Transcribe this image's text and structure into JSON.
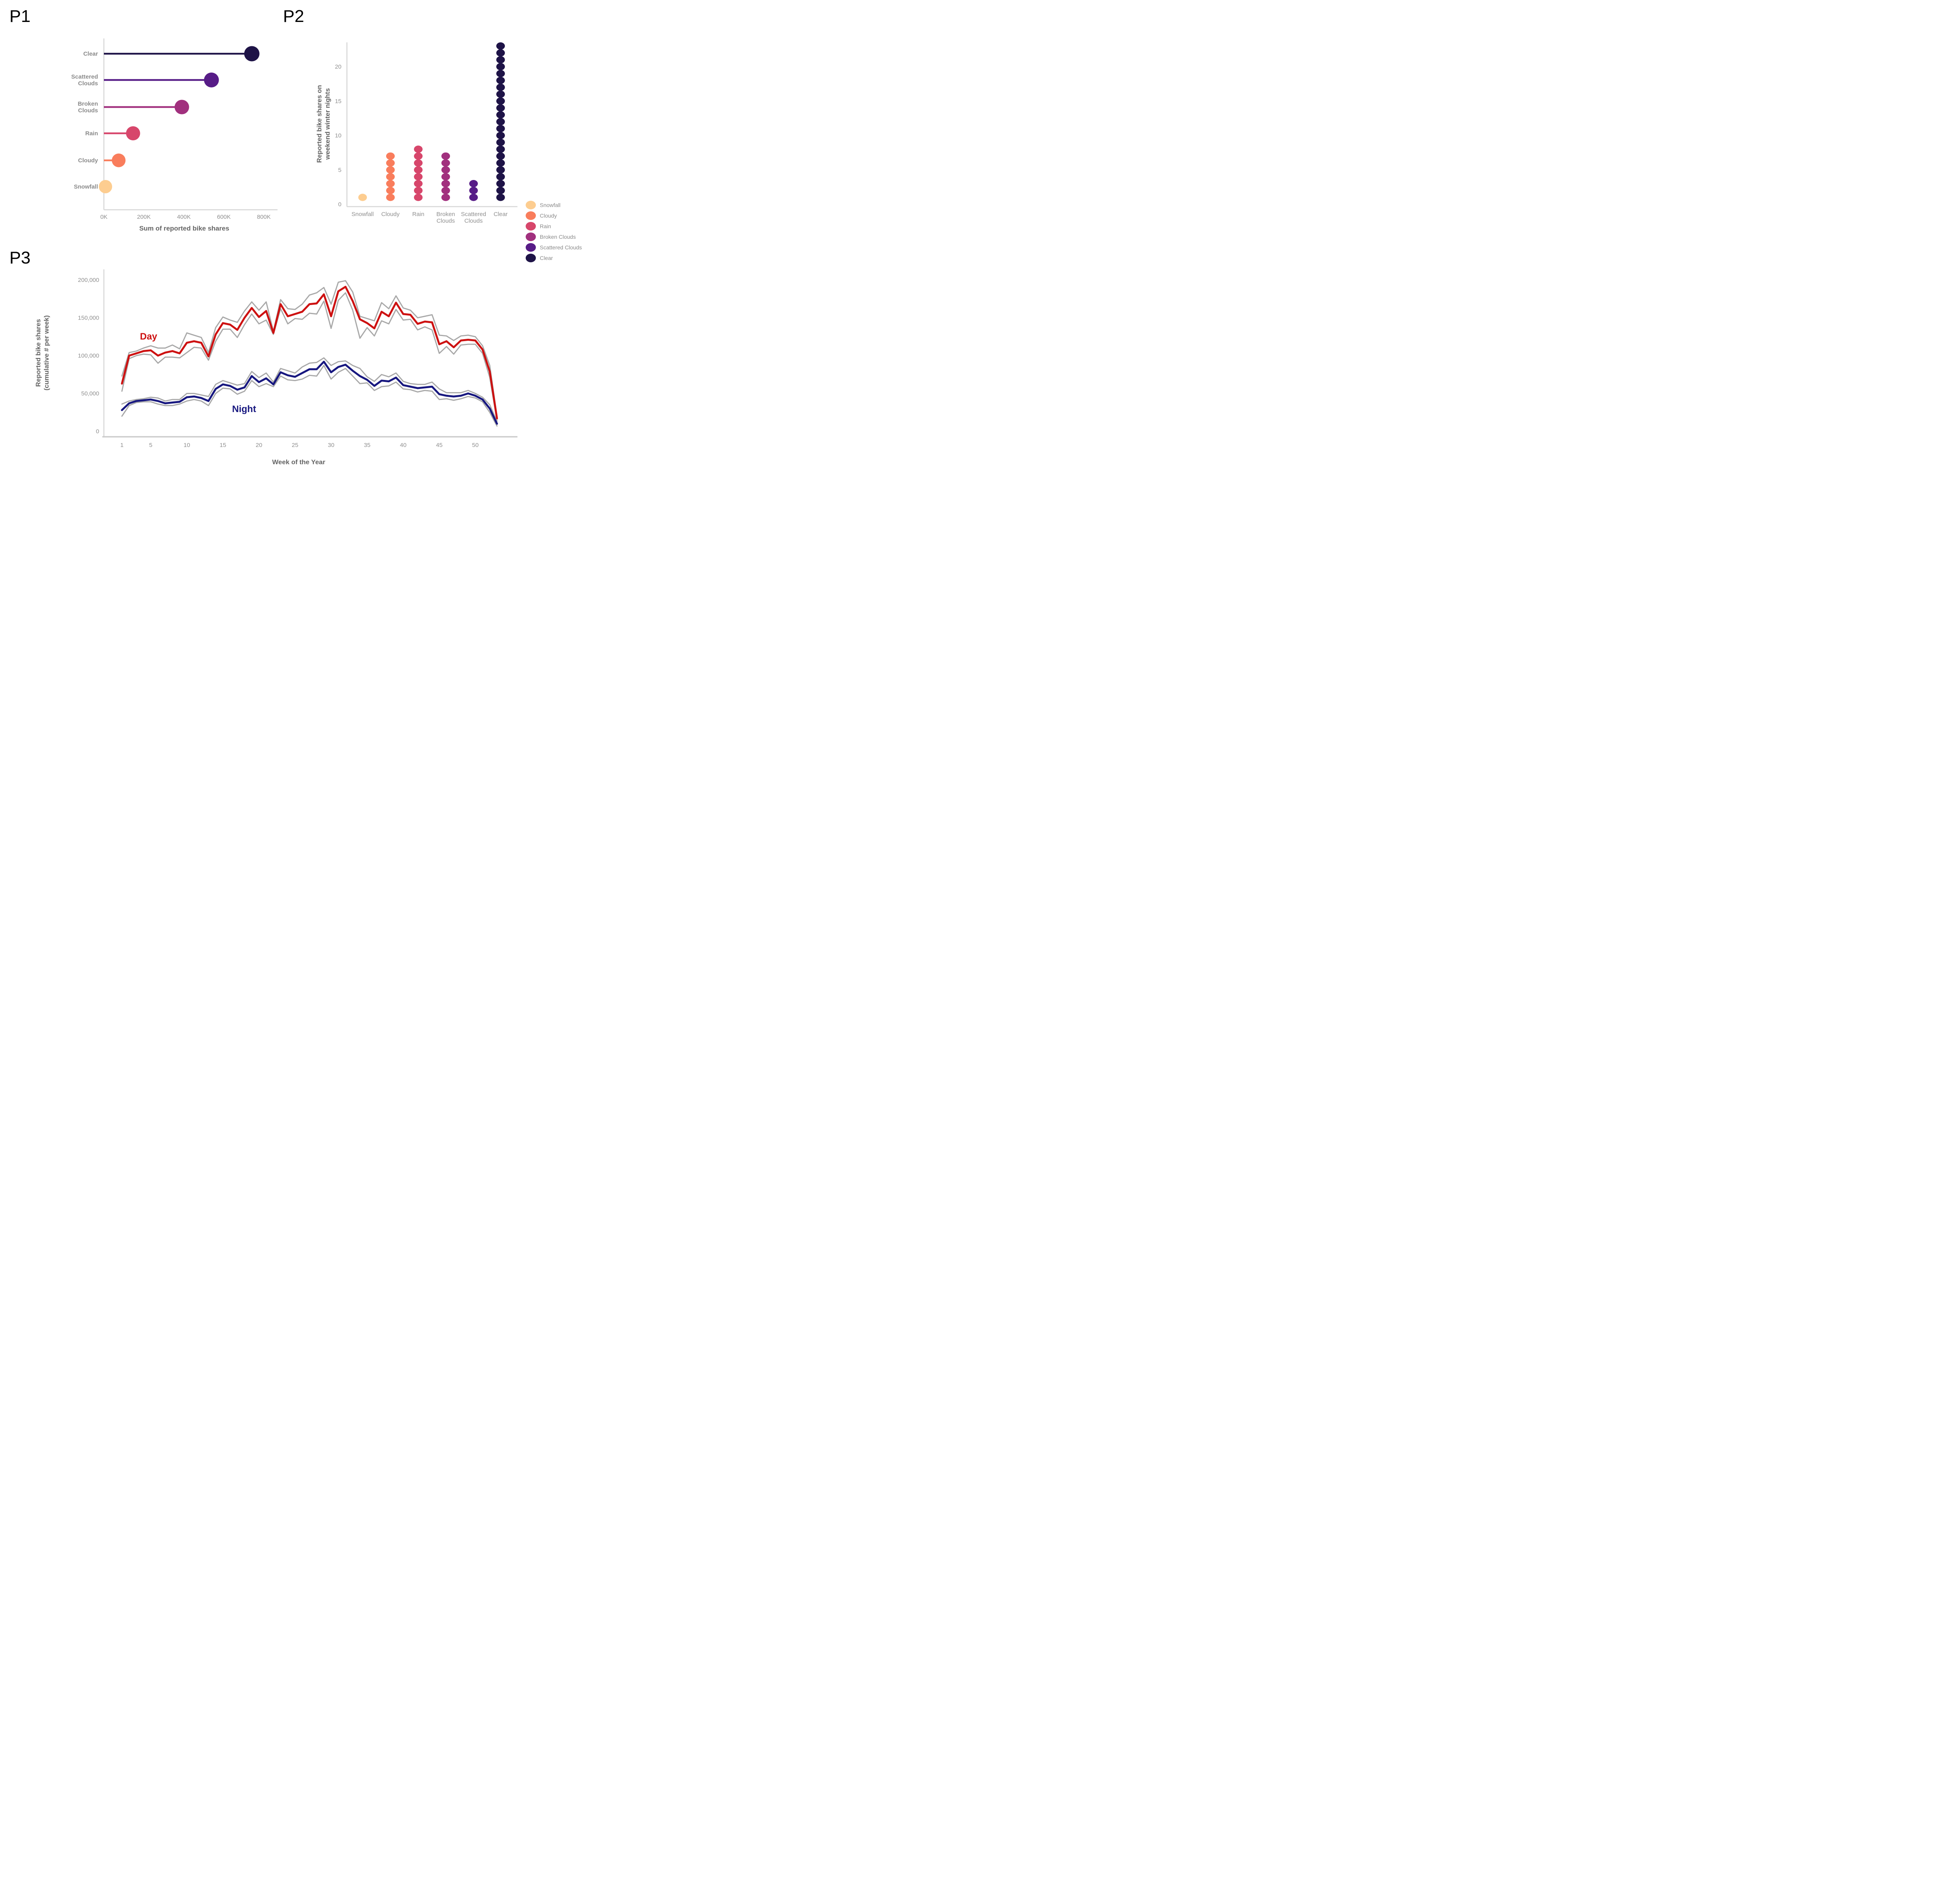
{
  "panels": {
    "p1_label": "P1",
    "p2_label": "P2",
    "p3_label": "P3",
    "p1_xlabel": "Sum of reported bike shares",
    "p2_ylabel": "Reported bike shares on\nweekend winter nights",
    "p3_xlabel": "Week of the Year",
    "p3_ylabel": "Reported bike shares\n(cumulative # per week)",
    "day_annotation": "Day",
    "night_annotation": "Night"
  },
  "colors": {
    "day_line": "#cd1111",
    "night_line": "#17177f",
    "raw_line": "#a8a8a8",
    "axis_line": "#d6d6d6",
    "axis_line_strong": "#cccccc",
    "tick_text": "#8f8f8f",
    "category_text": "#8a8a8a",
    "axis_title_text": "#646464",
    "clear": "#1e1347",
    "scattered_clouds": "#571c87",
    "broken_clouds": "#a1307e",
    "rain": "#d7466b",
    "cloudy": "#f97d5c",
    "snowfall": "#fdcd90"
  },
  "chart_data": [
    {
      "id": "p1",
      "type": "bar",
      "subtype": "lollipop",
      "title": "P1",
      "xlabel": "Sum of reported bike shares",
      "categories": [
        "Clear",
        "Scattered\nClouds",
        "Broken\nClouds",
        "Rain",
        "Cloudy",
        "Snowfall"
      ],
      "values": [
        740000,
        538000,
        390000,
        146000,
        74000,
        8000
      ],
      "colors": [
        "#1e1347",
        "#571c87",
        "#a1307e",
        "#d7466b",
        "#f97d5c",
        "#fdcd90"
      ],
      "dot_radii": [
        19.5,
        19,
        18.5,
        18,
        17.5,
        17
      ],
      "x_ticks": {
        "labels": [
          "0K",
          "200K",
          "400K",
          "600K",
          "800K"
        ],
        "values": [
          0,
          200000,
          400000,
          600000,
          800000
        ]
      },
      "xlim": [
        0,
        870000
      ],
      "grid": false
    },
    {
      "id": "p2",
      "type": "scatter",
      "subtype": "dot-stack",
      "title": "P2",
      "ylabel": "Reported bike shares on\nweekend winter nights",
      "categories": [
        "Snowfall",
        "Cloudy",
        "Rain",
        "Broken\nClouds",
        "Scattered\nClouds",
        "Clear"
      ],
      "counts": [
        1,
        7,
        8,
        7,
        3,
        23
      ],
      "colors": [
        "#fdcd90",
        "#f97d5c",
        "#d7466b",
        "#a1307e",
        "#571c87",
        "#1e1347"
      ],
      "y_ticks": [
        0,
        5,
        10,
        15,
        20
      ],
      "ylim": [
        0,
        23.5
      ],
      "legend_position": "right-bottom",
      "legend": [
        {
          "label": "Snowfall",
          "color": "#fdcd90"
        },
        {
          "label": "Cloudy",
          "color": "#f97d5c"
        },
        {
          "label": "Rain",
          "color": "#d7466b"
        },
        {
          "label": "Broken Clouds",
          "color": "#a1307e"
        },
        {
          "label": "Scattered Clouds",
          "color": "#571c87"
        },
        {
          "label": "Clear",
          "color": "#1e1347"
        }
      ],
      "grid": false
    },
    {
      "id": "p3",
      "type": "line",
      "title": "P3",
      "xlabel": "Week of the Year",
      "ylabel": "Reported bike shares\n(cumulative # per week)",
      "x_start_week": 1,
      "x_step": 1,
      "x_ticks": [
        1,
        5,
        10,
        15,
        20,
        25,
        30,
        35,
        40,
        45,
        50
      ],
      "y_ticks": {
        "values": [
          0,
          50000,
          100000,
          150000,
          200000
        ],
        "labels": [
          "0",
          "50,000",
          "100,000",
          "150,000",
          "200,000"
        ]
      },
      "xlim": [
        1,
        53
      ],
      "ylim": [
        0,
        205000
      ],
      "grid": false,
      "annotations": [
        {
          "text": "Day",
          "color": "#cd1111",
          "x_week": 6,
          "y_value": 118000
        },
        {
          "text": "Night",
          "color": "#17177f",
          "x_week": 19,
          "y_value": 13000
        }
      ],
      "series": [
        {
          "name": "Day raw (year 1)",
          "role": "raw",
          "color": "#a8a8a8",
          "width": 3,
          "values": [
            73000,
            104000,
            106000,
            110000,
            113000,
            110000,
            110000,
            114000,
            109000,
            130000,
            127000,
            124000,
            104000,
            137000,
            151000,
            147000,
            144000,
            159000,
            171000,
            160000,
            171000,
            132000,
            174000,
            162000,
            161000,
            168000,
            180000,
            183000,
            190000,
            168000,
            197000,
            199000,
            184000,
            152000,
            149000,
            146000,
            170000,
            162000,
            179000,
            163000,
            160000,
            150000,
            152000,
            154000,
            127000,
            126000,
            120000,
            126000,
            127000,
            125000,
            113000,
            87000,
            20000
          ]
        },
        {
          "name": "Day raw (year 2)",
          "role": "raw",
          "color": "#a8a8a8",
          "width": 3,
          "values": [
            53000,
            96000,
            100000,
            102000,
            101000,
            90000,
            98000,
            98000,
            97000,
            104000,
            111000,
            110000,
            94000,
            119000,
            135000,
            135000,
            124000,
            141000,
            155000,
            142000,
            147000,
            128000,
            162000,
            142000,
            149000,
            148000,
            156000,
            155000,
            172000,
            136000,
            173000,
            183000,
            160000,
            123000,
            137000,
            126000,
            146000,
            142000,
            161000,
            147000,
            148000,
            134000,
            138000,
            134000,
            103000,
            112000,
            102000,
            114000,
            115000,
            115000,
            103000,
            71000,
            14000
          ]
        },
        {
          "name": "Night raw (year 1)",
          "role": "raw",
          "color": "#a8a8a8",
          "width": 3,
          "values": [
            36000,
            40000,
            42000,
            43000,
            45000,
            44000,
            40000,
            42000,
            42000,
            50000,
            50000,
            48000,
            46000,
            62000,
            67000,
            64000,
            61000,
            63000,
            79000,
            71000,
            77000,
            65000,
            83000,
            80000,
            77000,
            85000,
            90000,
            91000,
            97000,
            87000,
            92000,
            93000,
            87000,
            83000,
            72000,
            66000,
            75000,
            72000,
            77000,
            66000,
            63000,
            62000,
            62000,
            65000,
            56000,
            51000,
            51000,
            51000,
            54000,
            50000,
            45000,
            35000,
            13000
          ]
        },
        {
          "name": "Night raw (year 2)",
          "role": "raw",
          "color": "#a8a8a8",
          "width": 3,
          "values": [
            20000,
            34000,
            38000,
            39000,
            39000,
            36000,
            34000,
            34000,
            36000,
            40000,
            42000,
            40000,
            34000,
            50000,
            57000,
            56000,
            49000,
            53000,
            67000,
            59000,
            63000,
            59000,
            73000,
            68000,
            67000,
            69000,
            74000,
            73000,
            87000,
            69000,
            78000,
            83000,
            73000,
            63000,
            64000,
            54000,
            59000,
            60000,
            65000,
            56000,
            55000,
            52000,
            54000,
            53000,
            42000,
            43000,
            41000,
            43000,
            46000,
            44000,
            39000,
            25000,
            7000
          ]
        },
        {
          "name": "Day",
          "role": "average",
          "color": "#cd1111",
          "width": 5,
          "values": [
            63000,
            100000,
            103000,
            106000,
            107000,
            100000,
            104000,
            106000,
            103000,
            117000,
            119000,
            117000,
            99000,
            128000,
            143000,
            141000,
            134000,
            150000,
            163000,
            151000,
            159000,
            130000,
            168000,
            152000,
            155000,
            158000,
            168000,
            169000,
            181000,
            152000,
            185000,
            191000,
            172000,
            148000,
            143000,
            136000,
            158000,
            152000,
            170000,
            155000,
            154000,
            142000,
            145000,
            144000,
            115000,
            119000,
            111000,
            120000,
            121000,
            120000,
            108000,
            79000,
            17000
          ]
        },
        {
          "name": "Night",
          "role": "average",
          "color": "#17177f",
          "width": 5,
          "values": [
            28000,
            37000,
            40000,
            41000,
            42000,
            40000,
            37000,
            38000,
            39000,
            45000,
            46000,
            44000,
            40000,
            56000,
            62000,
            60000,
            55000,
            58000,
            73000,
            65000,
            70000,
            62000,
            78000,
            74000,
            72000,
            77000,
            82000,
            82000,
            92000,
            78000,
            85000,
            88000,
            80000,
            73000,
            68000,
            60000,
            67000,
            66000,
            71000,
            61000,
            59000,
            57000,
            58000,
            59000,
            49000,
            47000,
            46000,
            47000,
            50000,
            47000,
            42000,
            30000,
            10000
          ]
        }
      ]
    }
  ]
}
